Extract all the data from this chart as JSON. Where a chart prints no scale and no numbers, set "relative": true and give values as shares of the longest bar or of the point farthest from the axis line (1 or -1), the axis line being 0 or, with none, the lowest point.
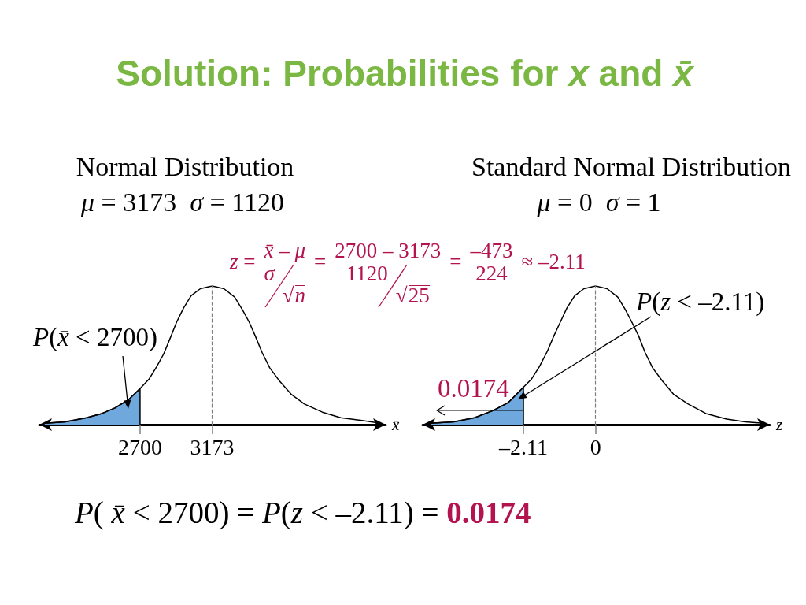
{
  "chart_data": [
    {
      "type": "other",
      "title": "Solution: Probabilities for x and x̄",
      "annotations": [
        "z =",
        "x̄ – μ",
        "σ",
        "√n",
        "=",
        "2700 – 3173",
        "1120",
        "√25",
        "=",
        "–473",
        "224",
        "≈ –2.11",
        "P( x̄ < 2700) = P(z < –2.11) =",
        "0.0174"
      ]
    },
    {
      "type": "line",
      "title": "Normal Distribution",
      "subtitle": "μ = 3173  σ = 1120",
      "xlabel": "x̄",
      "relative": true,
      "xlim": [
        2040,
        4310
      ],
      "xticks": [
        2700,
        3173
      ],
      "series": [
        {
          "type": "line",
          "color": "#000000",
          "x": [
            2075,
            2210,
            2350,
            2450,
            2535,
            2625,
            2700,
            2760,
            2810,
            2855,
            2900,
            2940,
            2985,
            3035,
            3095,
            3173,
            3250,
            3320,
            3370,
            3415,
            3455,
            3500,
            3550,
            3610,
            3690,
            3775,
            3895,
            4015,
            4155,
            4275
          ],
          "values": [
            0.01,
            0.02,
            0.05,
            0.08,
            0.12,
            0.18,
            0.26,
            0.33,
            0.42,
            0.51,
            0.63,
            0.74,
            0.84,
            0.93,
            0.98,
            1,
            0.98,
            0.92,
            0.83,
            0.74,
            0.64,
            0.52,
            0.41,
            0.32,
            0.22,
            0.15,
            0.09,
            0.05,
            0.03,
            0.01
          ]
        },
        {
          "type": "area",
          "color": "#6fa8dc",
          "x": [
            2075,
            2210,
            2350,
            2450,
            2535,
            2625,
            2700,
            2700
          ],
          "values": [
            0.01,
            0.02,
            0.05,
            0.08,
            0.12,
            0.18,
            0.26,
            0
          ]
        }
      ],
      "ref_lines": [
        {
          "axis": "x",
          "value": 3173,
          "line_style": "dashed",
          "color": "#7f7f7f"
        }
      ],
      "annotations": [
        "P(x̄ < 2700)"
      ]
    },
    {
      "type": "line",
      "title": "Standard Normal Distribution",
      "subtitle": "μ = 0  σ = 1",
      "xlabel": "z",
      "relative": true,
      "xlim": [
        -5.06,
        5.1
      ],
      "xticks": [
        {
          "value": -2.11,
          "label": "–2.11"
        },
        0
      ],
      "series": [
        {
          "type": "line",
          "color": "#000000",
          "x": [
            -4.83,
            -4.15,
            -3.54,
            -3.01,
            -2.55,
            -2.11,
            -1.87,
            -1.64,
            -1.41,
            -1.22,
            -1.03,
            -0.84,
            -0.61,
            -0.34,
            0,
            0.34,
            0.65,
            0.87,
            1.06,
            1.26,
            1.45,
            1.67,
            1.94,
            2.28,
            2.7,
            3.23,
            3.84,
            4.38,
            4.91
          ],
          "values": [
            0.01,
            0.02,
            0.05,
            0.1,
            0.16,
            0.27,
            0.33,
            0.42,
            0.53,
            0.64,
            0.74,
            0.84,
            0.93,
            0.98,
            1,
            0.98,
            0.92,
            0.83,
            0.74,
            0.64,
            0.52,
            0.41,
            0.32,
            0.22,
            0.15,
            0.08,
            0.04,
            0.02,
            0.01
          ]
        },
        {
          "type": "area",
          "color": "#6fa8dc",
          "x": [
            -4.83,
            -4.15,
            -3.54,
            -3.01,
            -2.55,
            -2.11,
            -2.11
          ],
          "values": [
            0.01,
            0.02,
            0.05,
            0.1,
            0.16,
            0.27,
            0
          ]
        }
      ],
      "ref_lines": [
        {
          "axis": "x",
          "value": 0,
          "line_style": "dashed",
          "color": "#7f7f7f"
        }
      ],
      "annotations": [
        "P(z < –2.11)",
        "0.0174"
      ]
    }
  ]
}
